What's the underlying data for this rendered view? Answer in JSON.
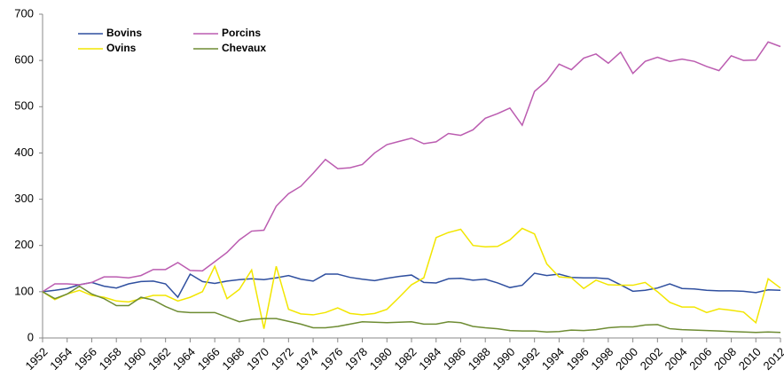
{
  "chart_data": {
    "type": "line",
    "x": [
      1952,
      1953,
      1954,
      1955,
      1956,
      1957,
      1958,
      1959,
      1960,
      1961,
      1962,
      1963,
      1964,
      1965,
      1966,
      1967,
      1968,
      1969,
      1970,
      1971,
      1972,
      1973,
      1974,
      1975,
      1976,
      1977,
      1978,
      1979,
      1980,
      1981,
      1982,
      1983,
      1984,
      1985,
      1986,
      1987,
      1988,
      1989,
      1990,
      1991,
      1992,
      1993,
      1994,
      1995,
      1996,
      1997,
      1998,
      1999,
      2000,
      2001,
      2002,
      2003,
      2004,
      2005,
      2006,
      2007,
      2008,
      2009,
      2010,
      2011,
      2012
    ],
    "xlim": [
      1952,
      2012
    ],
    "xticks": [
      1952,
      1954,
      1956,
      1958,
      1960,
      1962,
      1964,
      1966,
      1968,
      1970,
      1972,
      1974,
      1976,
      1978,
      1980,
      1982,
      1984,
      1986,
      1988,
      1990,
      1992,
      1994,
      1996,
      1998,
      2000,
      2002,
      2004,
      2006,
      2008,
      2010,
      2012
    ],
    "ylim": [
      0,
      700
    ],
    "yticks": [
      0,
      100,
      200,
      300,
      400,
      500,
      600,
      700
    ],
    "grid": false,
    "legend": "upper left",
    "series": [
      {
        "name": "Bovins",
        "color": "#2f4f9f",
        "values": [
          100,
          103,
          107,
          115,
          120,
          112,
          108,
          117,
          122,
          123,
          117,
          88,
          138,
          122,
          118,
          123,
          126,
          128,
          126,
          130,
          135,
          127,
          123,
          138,
          138,
          131,
          127,
          124,
          129,
          133,
          136,
          120,
          119,
          128,
          129,
          125,
          127,
          119,
          109,
          114,
          140,
          135,
          138,
          131,
          130,
          130,
          128,
          115,
          101,
          103,
          108,
          117,
          107,
          106,
          103,
          102,
          102,
          101,
          98,
          104,
          103
        ]
      },
      {
        "name": "Porcins",
        "color": "#bb5cb0",
        "values": [
          100,
          117,
          117,
          115,
          120,
          132,
          132,
          130,
          135,
          148,
          148,
          163,
          146,
          145,
          165,
          185,
          212,
          231,
          233,
          285,
          312,
          328,
          356,
          386,
          366,
          368,
          375,
          400,
          418,
          425,
          432,
          420,
          424,
          442,
          438,
          450,
          475,
          485,
          497,
          460,
          533,
          556,
          592,
          580,
          605,
          614,
          594,
          618,
          572,
          598,
          607,
          598,
          603,
          598,
          587,
          578,
          610,
          600,
          601,
          640,
          630
        ]
      },
      {
        "name": "Ovins",
        "color": "#f2e600",
        "values": [
          100,
          83,
          95,
          103,
          92,
          88,
          80,
          78,
          85,
          92,
          92,
          80,
          88,
          100,
          155,
          85,
          105,
          147,
          20,
          155,
          62,
          52,
          50,
          55,
          65,
          53,
          50,
          53,
          62,
          88,
          115,
          130,
          217,
          228,
          235,
          200,
          197,
          198,
          212,
          237,
          225,
          160,
          132,
          130,
          107,
          125,
          115,
          114,
          114,
          120,
          100,
          77,
          67,
          67,
          55,
          63,
          60,
          56,
          33,
          128,
          108
        ]
      },
      {
        "name": "Chevaux",
        "color": "#6e8c33",
        "values": [
          100,
          85,
          95,
          112,
          95,
          85,
          70,
          70,
          88,
          82,
          68,
          57,
          55,
          55,
          55,
          45,
          35,
          40,
          42,
          42,
          36,
          30,
          22,
          22,
          25,
          30,
          35,
          34,
          33,
          34,
          35,
          30,
          30,
          35,
          33,
          25,
          22,
          20,
          16,
          15,
          15,
          13,
          14,
          17,
          16,
          18,
          22,
          24,
          24,
          28,
          29,
          20,
          18,
          17,
          16,
          15,
          14,
          13,
          12,
          13,
          12
        ]
      }
    ]
  }
}
